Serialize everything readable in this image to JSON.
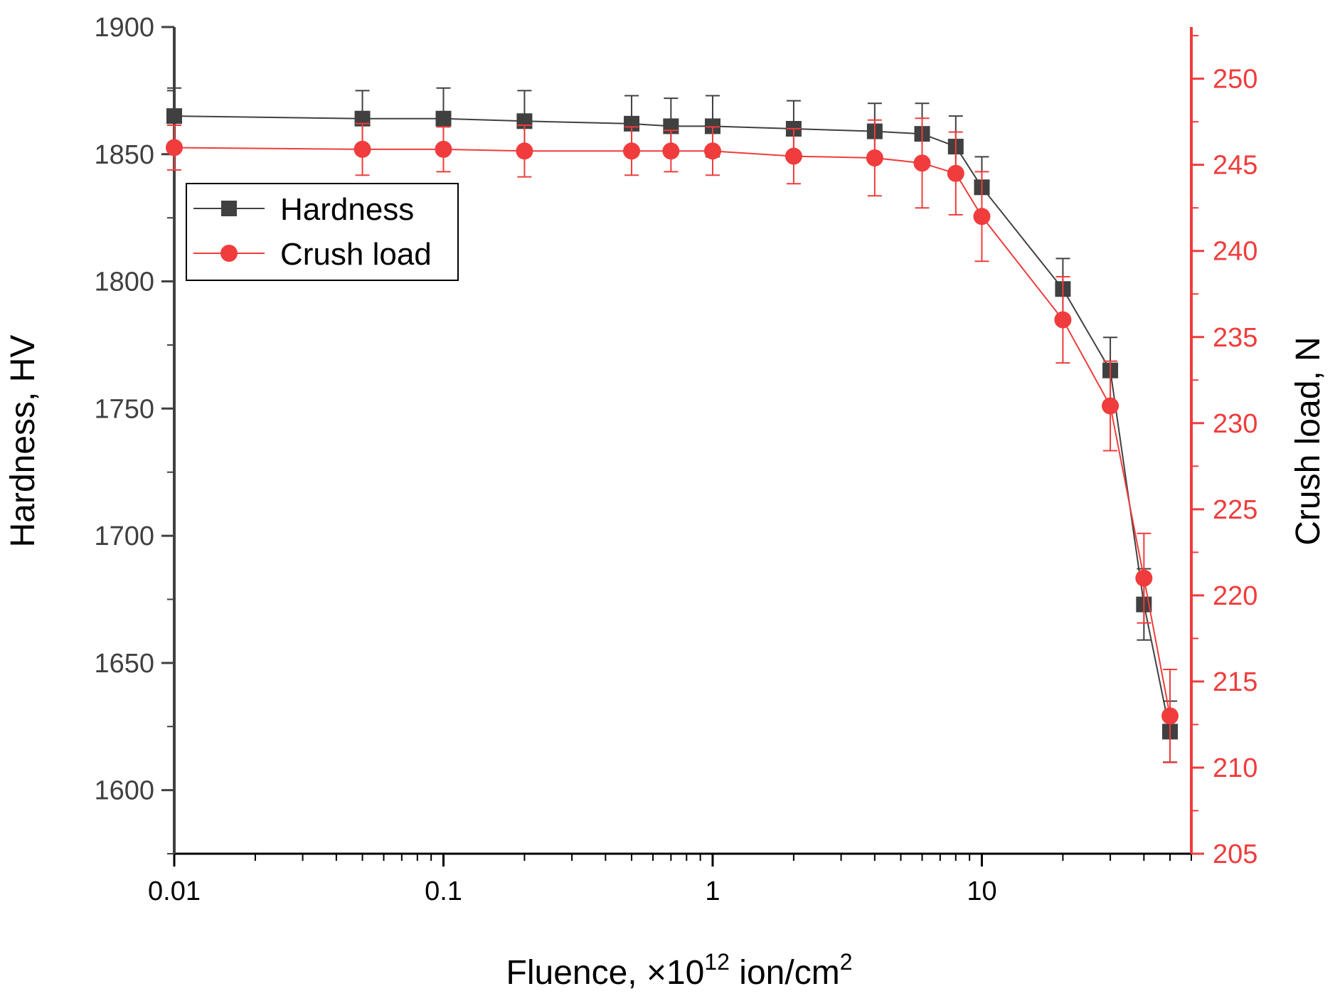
{
  "chart_data": {
    "type": "line",
    "title": "",
    "xlabel": "Fluence, ×10",
    "xlabel_sup": "12",
    "xlabel_suffix": " ion/cm",
    "xlabel_sup2": "2",
    "ylabel_left": "Hardness, HV",
    "ylabel_right": "Crush load, N",
    "x_scale": "log",
    "xlim": [
      0.01,
      60
    ],
    "ylim_left": [
      1575,
      1900
    ],
    "ylim_right": [
      205,
      253
    ],
    "x_ticks": [
      0.01,
      0.1,
      1,
      10
    ],
    "x_tick_labels": [
      "0.01",
      "0.1",
      "1",
      "10"
    ],
    "y_left_ticks": [
      1600,
      1650,
      1700,
      1750,
      1800,
      1850,
      1900
    ],
    "y_left_tick_labels": [
      "1600",
      "1650",
      "1700",
      "1750",
      "1800",
      "1850",
      "1900"
    ],
    "y_right_ticks": [
      205,
      210,
      215,
      220,
      225,
      230,
      235,
      240,
      245,
      250
    ],
    "y_right_tick_labels": [
      "205",
      "210",
      "215",
      "220",
      "225",
      "230",
      "235",
      "240",
      "245",
      "250"
    ],
    "legend_position": "top-left",
    "series": [
      {
        "name": "Hardness",
        "axis": "left",
        "color": "#404040",
        "marker": "square",
        "x": [
          0.01,
          0.05,
          0.1,
          0.2,
          0.5,
          0.7,
          1,
          2,
          4,
          6,
          8,
          10,
          20,
          30,
          40,
          50
        ],
        "values": [
          1865,
          1864,
          1864,
          1863,
          1862,
          1861,
          1861,
          1860,
          1859,
          1858,
          1853,
          1837,
          1797,
          1765,
          1673,
          1623
        ],
        "errors": [
          11,
          11,
          12,
          12,
          11,
          11,
          12,
          11,
          11,
          12,
          12,
          12,
          12,
          13,
          14,
          12
        ]
      },
      {
        "name": "Crush load",
        "axis": "right",
        "color": "#f03c3c",
        "marker": "circle",
        "x": [
          0.01,
          0.05,
          0.1,
          0.2,
          0.5,
          0.7,
          1,
          2,
          4,
          6,
          8,
          10,
          20,
          30,
          40,
          50
        ],
        "values": [
          246,
          245.9,
          245.9,
          245.8,
          245.8,
          245.8,
          245.8,
          245.5,
          245.4,
          245.1,
          244.5,
          242,
          236,
          231,
          221,
          213
        ],
        "errors": [
          1.3,
          1.5,
          1.3,
          1.5,
          1.4,
          1.2,
          1.4,
          1.6,
          2.2,
          2.6,
          2.4,
          2.6,
          2.5,
          2.6,
          2.6,
          2.7
        ]
      }
    ]
  },
  "colors": {
    "left_axis": "#404040",
    "right_axis": "#f03c3c"
  }
}
